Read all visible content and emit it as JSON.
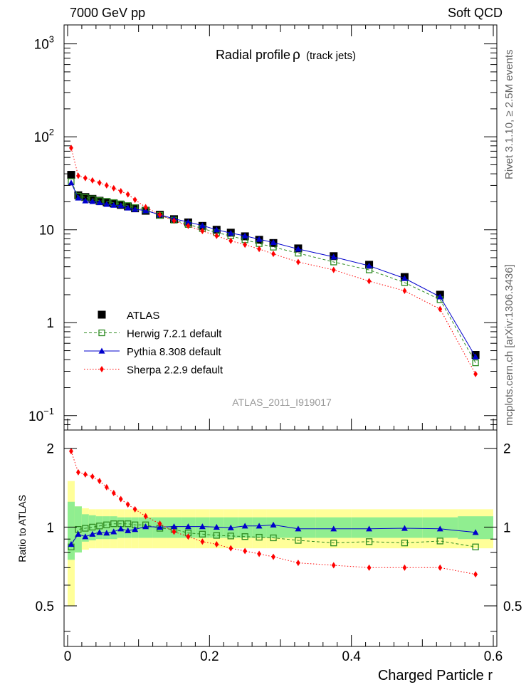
{
  "header": {
    "left": "7000 GeV pp",
    "right": "Soft QCD",
    "rivet": "Rivet 3.1.10, ≥ 2.5M events",
    "mcplots": "mcplots.cern.ch [arXiv:1306.3436]"
  },
  "chart_data": {
    "type": "scatter",
    "title": "Radial profile",
    "title_symbol": "ρ",
    "title_suffix": "(track jets)",
    "analysis_id": "ATLAS_2011_I919017",
    "xlabel": "Charged Particle r",
    "ratio_ylabel": "Ratio to ATLAS",
    "xlim": [
      -0.005,
      0.605
    ],
    "ylim_main": [
      0.07,
      1600
    ],
    "ylim_ratio": [
      0.35,
      2.35
    ],
    "log_y_main": true,
    "log_y_ratio": true,
    "main_y_ticks": [
      {
        "value": 1000,
        "base": "10",
        "exp": "3"
      },
      {
        "value": 100,
        "base": "10",
        "exp": "2"
      },
      {
        "value": 10,
        "base": "10",
        "exp": ""
      },
      {
        "value": 1,
        "base": "1",
        "exp": ""
      },
      {
        "value": 0.1,
        "base": "10",
        "exp": "−1"
      }
    ],
    "ratio_y_ticks": [
      {
        "value": 2,
        "label": "2"
      },
      {
        "value": 1,
        "label": "1"
      },
      {
        "value": 0.5,
        "label": "0.5"
      }
    ],
    "x_ticks": [
      {
        "value": 0,
        "label": "0"
      },
      {
        "value": 0.2,
        "label": "0.2"
      },
      {
        "value": 0.4,
        "label": "0.4"
      },
      {
        "value": 0.6,
        "label": "0.6"
      }
    ],
    "x": [
      0.005,
      0.015,
      0.025,
      0.035,
      0.045,
      0.055,
      0.065,
      0.075,
      0.085,
      0.095,
      0.11,
      0.13,
      0.15,
      0.17,
      0.19,
      0.21,
      0.23,
      0.25,
      0.27,
      0.29,
      0.325,
      0.375,
      0.425,
      0.475,
      0.525,
      0.575
    ],
    "bin_edges": [
      0.0,
      0.01,
      0.02,
      0.03,
      0.04,
      0.05,
      0.06,
      0.07,
      0.08,
      0.09,
      0.1,
      0.12,
      0.14,
      0.16,
      0.18,
      0.2,
      0.22,
      0.24,
      0.26,
      0.28,
      0.3,
      0.35,
      0.4,
      0.45,
      0.5,
      0.55,
      0.6
    ],
    "series": [
      {
        "name": "ATLAS",
        "color": "#000000",
        "marker": "square-filled",
        "values": [
          39,
          23.5,
          22.5,
          21.5,
          20.5,
          19.8,
          19.2,
          18.5,
          17.8,
          17,
          16,
          14.5,
          13,
          12,
          11,
          10,
          9.3,
          8.5,
          7.8,
          7.2,
          6.3,
          5.2,
          4.2,
          3.1,
          2.0,
          0.45
        ]
      },
      {
        "name": "Herwig 7.2.1 default",
        "color": "#2e8b22",
        "marker": "square-open",
        "dash": "dashed",
        "values": [
          33,
          23,
          22.3,
          21.5,
          20.6,
          20.2,
          19.6,
          19.0,
          18.2,
          17.3,
          16.3,
          14.3,
          12.7,
          11.4,
          10.3,
          9.3,
          8.6,
          7.8,
          7.1,
          6.5,
          5.6,
          4.5,
          3.7,
          2.7,
          1.77,
          0.37
        ]
      },
      {
        "name": "Pythia 8.308 default",
        "color": "#0000cc",
        "marker": "triangle-filled",
        "values": [
          32,
          22,
          20.5,
          20.2,
          19.6,
          18.8,
          18.4,
          18.2,
          17.2,
          16.6,
          16.1,
          14.5,
          13.1,
          12.1,
          11.1,
          10.0,
          9.2,
          8.6,
          7.9,
          7.3,
          6.2,
          5.1,
          4.1,
          3.0,
          1.9,
          0.43
        ]
      },
      {
        "name": "Sherpa 2.2.9 default",
        "color": "#ff0000",
        "marker": "diamond-filled",
        "dash": "dotted",
        "values": [
          76,
          38,
          36,
          34,
          32,
          30,
          28,
          26,
          24,
          21,
          17.5,
          14.5,
          12.5,
          11,
          9.7,
          8.6,
          7.6,
          6.9,
          6.2,
          5.5,
          4.5,
          3.7,
          2.8,
          2.2,
          1.4,
          0.28
        ]
      }
    ],
    "ratio_series": [
      {
        "name": "Herwig 7.2.1 default",
        "values": [
          0.84,
          0.98,
          0.99,
          1.0,
          1.01,
          1.02,
          1.03,
          1.03,
          1.03,
          1.02,
          1.02,
          0.99,
          0.98,
          0.95,
          0.94,
          0.93,
          0.925,
          0.92,
          0.915,
          0.91,
          0.89,
          0.87,
          0.88,
          0.87,
          0.885,
          0.84
        ]
      },
      {
        "name": "Pythia 8.308 default",
        "values": [
          0.86,
          0.94,
          0.92,
          0.94,
          0.955,
          0.95,
          0.96,
          0.985,
          0.97,
          0.98,
          1.005,
          1.0,
          1.005,
          1.005,
          1.005,
          1.0,
          0.995,
          1.01,
          1.01,
          1.02,
          0.985,
          0.985,
          0.985,
          0.99,
          0.985,
          0.955
        ]
      },
      {
        "name": "Sherpa 2.2.9 default",
        "values": [
          1.95,
          1.62,
          1.59,
          1.56,
          1.5,
          1.42,
          1.35,
          1.28,
          1.22,
          1.17,
          1.1,
          1.03,
          0.96,
          0.92,
          0.88,
          0.86,
          0.83,
          0.81,
          0.79,
          0.77,
          0.73,
          0.715,
          0.7,
          0.7,
          0.7,
          0.66
        ]
      }
    ],
    "ratio_band_inner": [
      0.25,
      0.2,
      0.12,
      0.11,
      0.1,
      0.1,
      0.1,
      0.09,
      0.09,
      0.09,
      0.09,
      0.09,
      0.09,
      0.09,
      0.09,
      0.09,
      0.09,
      0.09,
      0.09,
      0.09,
      0.09,
      0.09,
      0.09,
      0.09,
      0.09,
      0.1
    ],
    "ratio_band_outer": [
      0.5,
      0.2,
      0.18,
      0.17,
      0.17,
      0.17,
      0.17,
      0.17,
      0.17,
      0.17,
      0.17,
      0.17,
      0.17,
      0.17,
      0.17,
      0.17,
      0.17,
      0.17,
      0.17,
      0.17,
      0.17,
      0.17,
      0.17,
      0.17,
      0.17,
      0.17
    ],
    "colors": {
      "band_inner": "#90ee90",
      "band_outer": "#ffff99"
    },
    "legend_position": "lower-left"
  }
}
